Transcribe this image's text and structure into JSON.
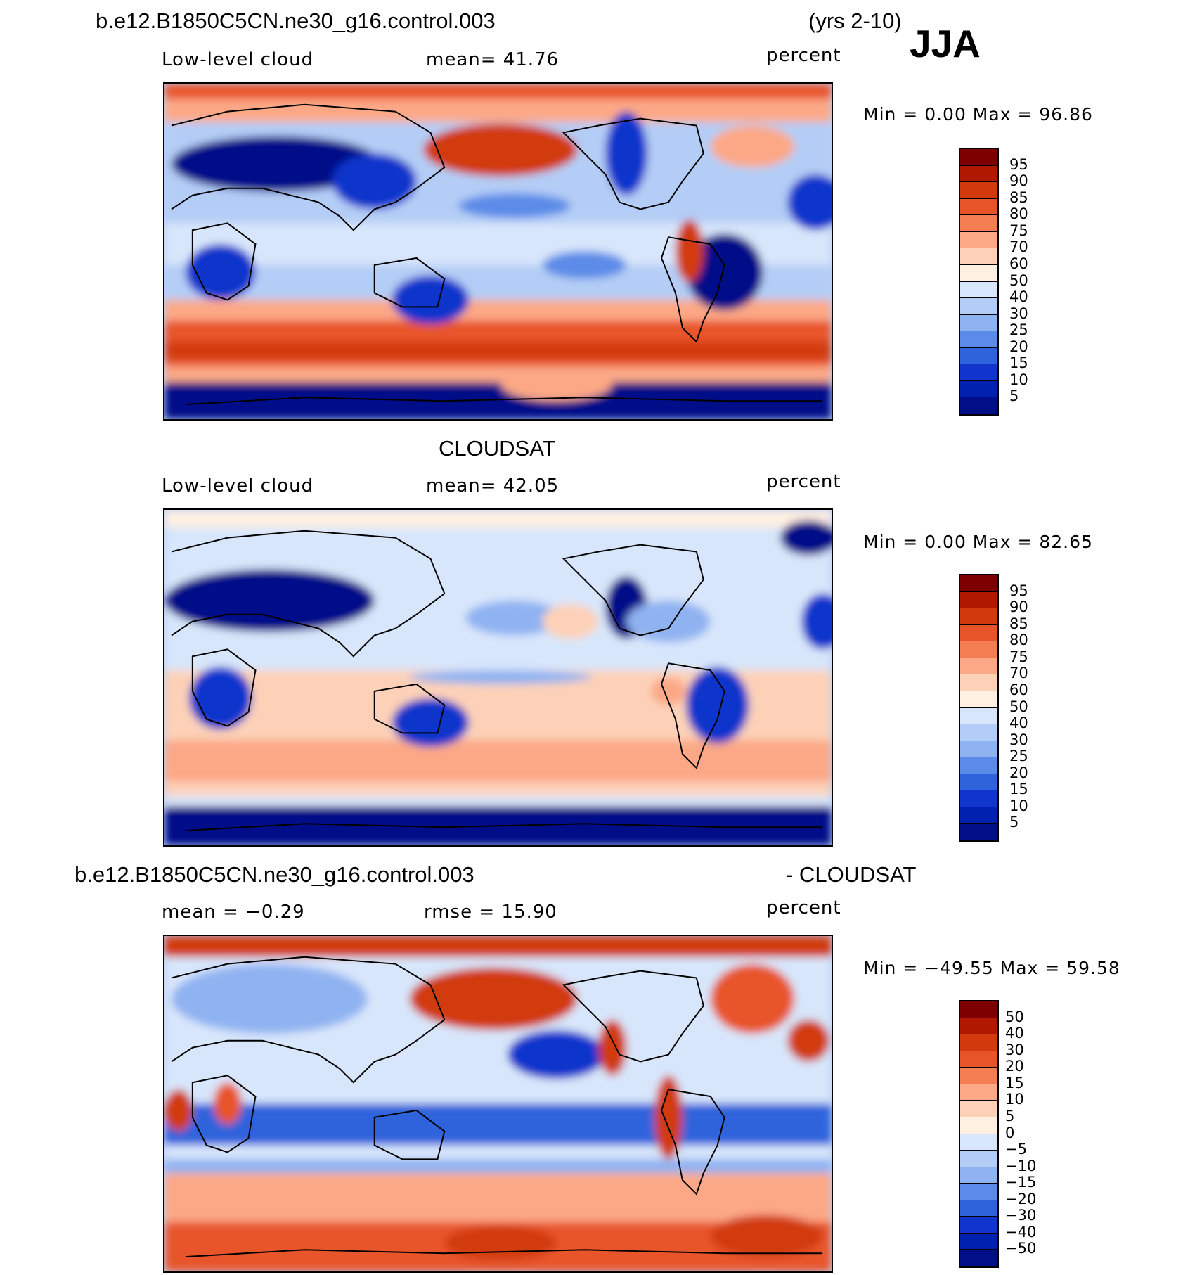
{
  "header": {
    "case_name": "b.e12.B1850C5CN.ne30_g16.control.003",
    "years": "(yrs 2-10)",
    "season": "JJA"
  },
  "panels": [
    {
      "id": "model",
      "title": "",
      "variable": "Low-level cloud",
      "stat_text": "mean=   41.76",
      "units": "percent",
      "min_max_text": "Min =    0.00 Max =   96.86",
      "colorbar": {
        "labels": [
          "95",
          "90",
          "85",
          "80",
          "75",
          "70",
          "60",
          "50",
          "40",
          "30",
          "25",
          "20",
          "15",
          "10",
          "5"
        ],
        "colors": [
          "#7f0000",
          "#b01800",
          "#d23a0e",
          "#e8542a",
          "#f57d52",
          "#fca886",
          "#fdd1b8",
          "#fff0e2",
          "#d8e6fb",
          "#b4cdf6",
          "#8fb2f1",
          "#5b8be8",
          "#2f63dc",
          "#1034cc",
          "#0020b0",
          "#000e88"
        ]
      }
    },
    {
      "id": "obs",
      "title": "CLOUDSAT",
      "variable": "Low-level cloud",
      "stat_text": "mean=   42.05",
      "units": "percent",
      "min_max_text": "Min =    0.00 Max =   82.65",
      "colorbar": {
        "labels": [
          "95",
          "90",
          "85",
          "80",
          "75",
          "70",
          "60",
          "50",
          "40",
          "30",
          "25",
          "20",
          "15",
          "10",
          "5"
        ],
        "colors": [
          "#7f0000",
          "#b01800",
          "#d23a0e",
          "#e8542a",
          "#f57d52",
          "#fca886",
          "#fdd1b8",
          "#fff0e2",
          "#d8e6fb",
          "#b4cdf6",
          "#8fb2f1",
          "#5b8be8",
          "#2f63dc",
          "#1034cc",
          "#0020b0",
          "#000e88"
        ]
      }
    },
    {
      "id": "diff",
      "title_left": "b.e12.B1850C5CN.ne30_g16.control.003",
      "title_right": "- CLOUDSAT",
      "stat_mean": "mean =   −0.29",
      "stat_rmse": "rmse =   15.90",
      "units": "percent",
      "min_max_text": "Min = −49.55 Max =   59.58",
      "colorbar": {
        "labels": [
          "50",
          "40",
          "30",
          "20",
          "15",
          "10",
          "5",
          "0",
          "−5",
          "−10",
          "−15",
          "−20",
          "−30",
          "−40",
          "−50"
        ],
        "colors": [
          "#7f0000",
          "#b01800",
          "#d23a0e",
          "#e8542a",
          "#f57d52",
          "#fca886",
          "#fdd1b8",
          "#fff0e2",
          "#d8e6fb",
          "#b4cdf6",
          "#8fb2f1",
          "#5b8be8",
          "#2f63dc",
          "#1034cc",
          "#0020b0",
          "#000e88"
        ]
      }
    }
  ]
}
